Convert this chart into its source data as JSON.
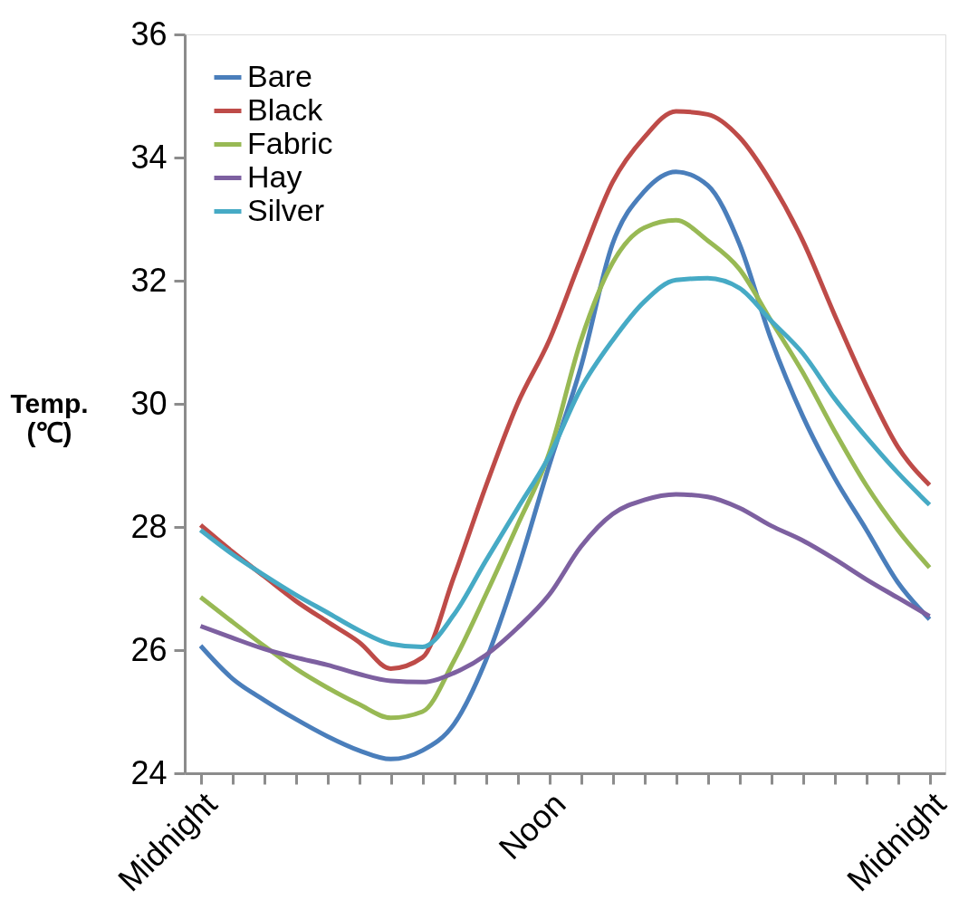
{
  "chart_data": {
    "type": "line",
    "ylabel": "Temp.\n(℃)",
    "categories": [
      "Midnight",
      null,
      null,
      null,
      null,
      null,
      null,
      null,
      null,
      null,
      null,
      "Noon",
      null,
      null,
      null,
      null,
      null,
      null,
      null,
      null,
      null,
      null,
      null,
      "Midnight"
    ],
    "ylim": [
      24,
      36
    ],
    "yticks": [
      24,
      26,
      28,
      30,
      32,
      34,
      36
    ],
    "grid": false,
    "legend": "top left",
    "marker": "none",
    "line_style": "solid",
    "series": [
      {
        "name": "Bare",
        "color": "#4a7ebb",
        "values": [
          26.07,
          25.54,
          25.19,
          24.88,
          24.6,
          24.37,
          24.23,
          24.37,
          24.8,
          25.83,
          27.3,
          29.0,
          30.6,
          32.6,
          33.45,
          33.77,
          33.55,
          32.6,
          31.05,
          29.8,
          28.8,
          27.96,
          27.1,
          26.5
        ]
      },
      {
        "name": "Black",
        "color": "#be4b48",
        "values": [
          28.03,
          27.6,
          27.2,
          26.8,
          26.46,
          26.13,
          25.7,
          25.88,
          27.2,
          28.66,
          30.0,
          31.03,
          32.35,
          33.6,
          34.33,
          34.75,
          34.7,
          34.33,
          33.6,
          32.65,
          31.45,
          30.3,
          29.3,
          28.68
        ]
      },
      {
        "name": "Fabric",
        "color": "#98b954",
        "values": [
          26.86,
          26.46,
          26.07,
          25.7,
          25.39,
          25.12,
          24.9,
          25.0,
          25.83,
          26.9,
          28.03,
          29.2,
          31.03,
          32.29,
          32.86,
          32.98,
          32.65,
          32.19,
          31.35,
          30.51,
          29.56,
          28.68,
          27.95,
          27.34
        ]
      },
      {
        "name": "Hay",
        "color": "#7d60a0",
        "values": [
          26.39,
          26.2,
          26.02,
          25.88,
          25.76,
          25.61,
          25.5,
          25.48,
          25.63,
          25.92,
          26.36,
          26.9,
          27.68,
          28.21,
          28.44,
          28.53,
          28.49,
          28.31,
          28.02,
          27.78,
          27.48,
          27.15,
          26.85,
          26.55
        ]
      },
      {
        "name": "Silver",
        "color": "#46aac5",
        "values": [
          27.95,
          27.56,
          27.22,
          26.9,
          26.61,
          26.32,
          26.1,
          26.05,
          26.58,
          27.45,
          28.3,
          29.15,
          30.25,
          31.03,
          31.66,
          32.01,
          32.04,
          31.88,
          31.35,
          30.82,
          30.09,
          29.46,
          28.88,
          28.36
        ]
      }
    ]
  }
}
